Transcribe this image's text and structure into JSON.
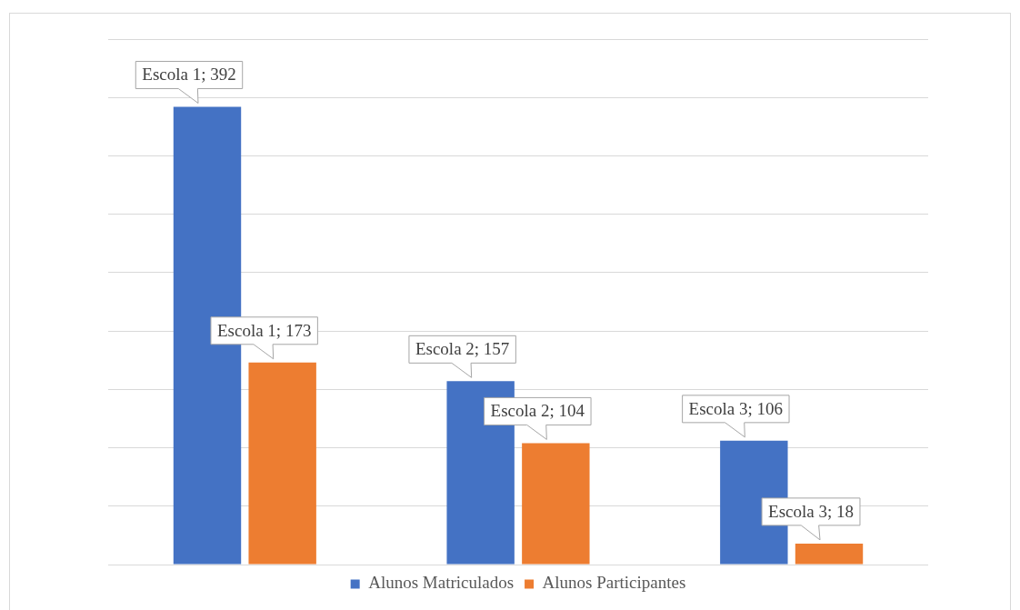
{
  "chart_data": {
    "type": "bar",
    "categories": [
      null,
      null,
      null
    ],
    "series": [
      {
        "name": "Alunos Matriculados",
        "color": "#4472c4",
        "values": [
          392,
          157,
          106
        ],
        "value_labels": [
          "Escola 1; 392",
          "Escola 2; 157",
          "Escola 3; 106"
        ]
      },
      {
        "name": "Alunos Participantes",
        "color": "#ed7d31",
        "values": [
          173,
          104,
          18
        ],
        "value_labels": [
          "Escola 1; 173",
          "Escola 2; 104",
          "Escola 3; 18"
        ]
      }
    ],
    "ylim": [
      0,
      450
    ],
    "yticks": [
      {
        "value": 0,
        "label": null
      },
      {
        "value": 50,
        "label": null
      },
      {
        "value": 100,
        "label": null
      },
      {
        "value": 150,
        "label": null
      },
      {
        "value": 200,
        "label": null
      },
      {
        "value": 250,
        "label": null
      },
      {
        "value": 300,
        "label": null
      },
      {
        "value": 350,
        "label": null
      },
      {
        "value": 400,
        "label": null
      },
      {
        "value": 450,
        "label": null
      }
    ],
    "grid": "y",
    "tick_labels": false,
    "legend": "bottom"
  }
}
